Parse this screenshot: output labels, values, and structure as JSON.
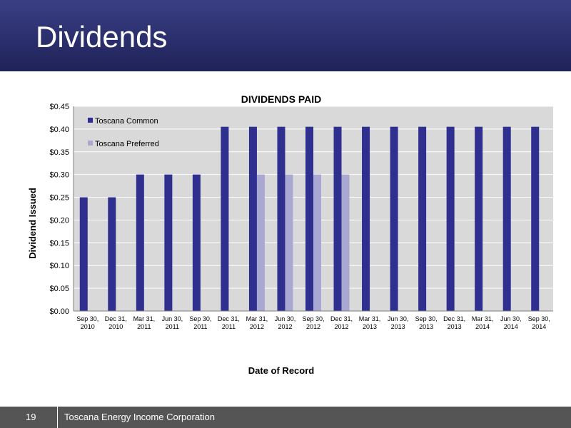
{
  "slide": {
    "title": "Dividends",
    "page_number": "19",
    "company": "Toscana Energy Income Corporation"
  },
  "colors": {
    "common": "#2e2f8e",
    "preferred": "#a9a8d3",
    "plot_bg": "#d9d9d9",
    "grid": "#ffffff"
  },
  "chart_data": {
    "type": "bar",
    "title": "DIVIDENDS PAID",
    "xlabel": "Date of Record",
    "ylabel": "Dividend Issued",
    "ylim": [
      0,
      0.45
    ],
    "yticks": [
      "$0.00",
      "$0.05",
      "$0.10",
      "$0.15",
      "$0.20",
      "$0.25",
      "$0.30",
      "$0.35",
      "$0.40",
      "$0.45"
    ],
    "legend_position": "top-left",
    "grid": true,
    "categories": [
      [
        "Sep 30,",
        "2010"
      ],
      [
        "Dec 31,",
        "2010"
      ],
      [
        "Mar 31,",
        "2011"
      ],
      [
        "Jun 30,",
        "2011"
      ],
      [
        "Sep 30,",
        "2011"
      ],
      [
        "Dec 31,",
        "2011"
      ],
      [
        "Mar 31,",
        "2012"
      ],
      [
        "Jun 30,",
        "2012"
      ],
      [
        "Sep 30,",
        "2012"
      ],
      [
        "Dec 31,",
        "2012"
      ],
      [
        "Mar 31,",
        "2013"
      ],
      [
        "Jun 30,",
        "2013"
      ],
      [
        "Sep 30,",
        "2013"
      ],
      [
        "Dec 31,",
        "2013"
      ],
      [
        "Mar 31,",
        "2014"
      ],
      [
        "Jun 30,",
        "2014"
      ],
      [
        "Sep 30,",
        "2014"
      ]
    ],
    "series": [
      {
        "name": "Toscana Common",
        "values": [
          0.25,
          0.25,
          0.3,
          0.3,
          0.3,
          0.405,
          0.405,
          0.405,
          0.405,
          0.405,
          0.405,
          0.405,
          0.405,
          0.405,
          0.405,
          0.405,
          0.405
        ]
      },
      {
        "name": "Toscana Preferred",
        "values": [
          null,
          null,
          null,
          null,
          null,
          null,
          0.3,
          0.3,
          0.3,
          0.3,
          null,
          null,
          null,
          null,
          null,
          null,
          null
        ]
      }
    ]
  }
}
